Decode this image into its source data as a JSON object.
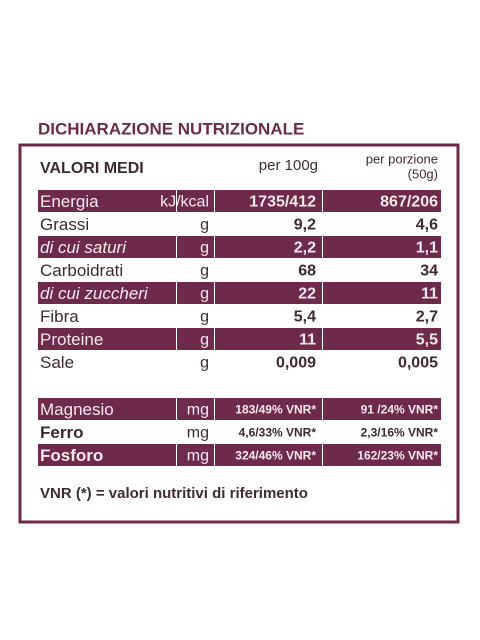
{
  "title": "DICHIARAZIONE NUTRIZIONALE",
  "header": {
    "label": "VALORI MEDI",
    "per100": "per 100g",
    "per_portion": [
      "per porzione",
      "(50g)"
    ]
  },
  "nutrients": [
    [
      "Energia",
      "kJ/kcal",
      "1735/412",
      "867/206"
    ],
    [
      "Grassi",
      "g",
      "9,2",
      "4,6"
    ],
    [
      "di cui saturi",
      "g",
      "2,2",
      "1,1"
    ],
    [
      "Carboidrati",
      "g",
      "68",
      "34"
    ],
    [
      "di cui zuccheri",
      "g",
      "22",
      "11"
    ],
    [
      "Fibra",
      "g",
      "5,4",
      "2,7"
    ],
    [
      "Proteine",
      "g",
      "11",
      "5,5"
    ],
    [
      "Sale",
      "g",
      "0,009",
      "0,005"
    ]
  ],
  "minerals": [
    [
      "Magnesio",
      "mg",
      "183/49% VNR*",
      "91 /24% VNR*"
    ],
    [
      "Ferro",
      "mg",
      "4,6/33% VNR*",
      "2,3/16% VNR*"
    ],
    [
      "Fosforo",
      "mg",
      "324/46% VNR*",
      "162/23% VNR*"
    ]
  ],
  "footnote": "VNR (*) = valori nutritivi di riferimento"
}
